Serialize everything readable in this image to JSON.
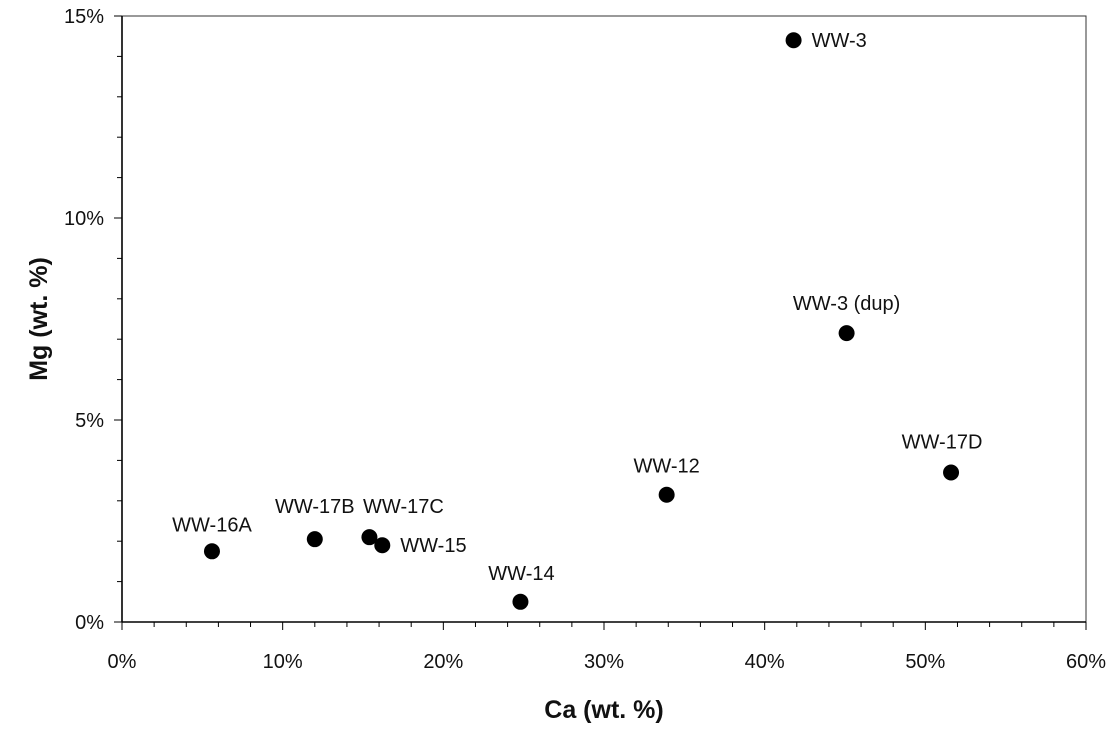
{
  "chart_data": {
    "type": "scatter",
    "title": "",
    "xlabel": "Ca (wt. %)",
    "ylabel": "Mg (wt. %)",
    "xlim": [
      0,
      60
    ],
    "ylim": [
      0,
      15
    ],
    "x_ticks": [
      0,
      10,
      20,
      30,
      40,
      50,
      60
    ],
    "x_tick_labels": [
      "0%",
      "10%",
      "20%",
      "30%",
      "40%",
      "50%",
      "60%"
    ],
    "y_ticks": [
      0,
      5,
      10,
      15
    ],
    "y_tick_labels": [
      "0%",
      "5%",
      "10%",
      "15%"
    ],
    "grid": false,
    "legend": "none",
    "marker_color": "#000000",
    "points": [
      {
        "label": "WW-16A",
        "x": 5.6,
        "y": 1.75
      },
      {
        "label": "WW-17B",
        "x": 12.0,
        "y": 2.05
      },
      {
        "label": "WW-17C",
        "x": 15.4,
        "y": 2.1
      },
      {
        "label": "WW-15",
        "x": 16.2,
        "y": 1.9
      },
      {
        "label": "WW-14",
        "x": 24.8,
        "y": 0.5
      },
      {
        "label": "WW-12",
        "x": 33.9,
        "y": 3.15
      },
      {
        "label": "WW-3",
        "x": 41.8,
        "y": 14.4
      },
      {
        "label": "WW-3 (dup)",
        "x": 45.1,
        "y": 7.15
      },
      {
        "label": "WW-17D",
        "x": 51.6,
        "y": 3.7
      }
    ]
  }
}
